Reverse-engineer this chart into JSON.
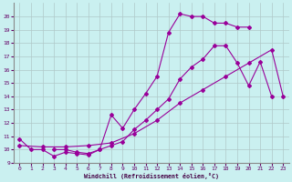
{
  "xlabel": "Windchill (Refroidissement éolien,°C)",
  "bg_color": "#caf0f0",
  "grid_color": "#b0c8c8",
  "line_color": "#990099",
  "xlim": [
    -0.5,
    23.5
  ],
  "ylim": [
    9,
    21
  ],
  "yticks": [
    9,
    10,
    11,
    12,
    13,
    14,
    15,
    16,
    17,
    18,
    19,
    20
  ],
  "xticks": [
    0,
    1,
    2,
    3,
    4,
    5,
    6,
    7,
    8,
    9,
    10,
    11,
    12,
    13,
    14,
    15,
    16,
    17,
    18,
    19,
    20,
    21,
    22,
    23
  ],
  "curve1_x": [
    0,
    1,
    2,
    3,
    4,
    5,
    6,
    7,
    8,
    9,
    10,
    11,
    12,
    13,
    14,
    15,
    16,
    17,
    18,
    19,
    20
  ],
  "curve1_y": [
    10.8,
    10.0,
    10.0,
    9.5,
    9.8,
    9.7,
    9.6,
    10.0,
    12.6,
    11.6,
    13.0,
    14.2,
    15.5,
    18.8,
    20.2,
    20.0,
    20.0,
    19.5,
    19.5,
    19.2,
    19.2
  ],
  "curve2_x": [
    3,
    4,
    5,
    6,
    7,
    8,
    9,
    10,
    11,
    12,
    13,
    14,
    15,
    16,
    17,
    18,
    19,
    20,
    21,
    22
  ],
  "curve2_y": [
    10.0,
    10.0,
    9.8,
    9.7,
    10.0,
    10.3,
    10.6,
    11.5,
    12.2,
    13.0,
    13.8,
    15.3,
    16.2,
    16.8,
    17.8,
    17.8,
    16.5,
    14.8,
    16.6,
    14.0
  ],
  "curve3_x": [
    0,
    2,
    4,
    6,
    8,
    10,
    12,
    14,
    16,
    18,
    20,
    22,
    23
  ],
  "curve3_y": [
    10.3,
    10.2,
    10.2,
    10.3,
    10.5,
    11.2,
    12.2,
    13.5,
    14.5,
    15.5,
    16.5,
    17.5,
    14.0
  ]
}
